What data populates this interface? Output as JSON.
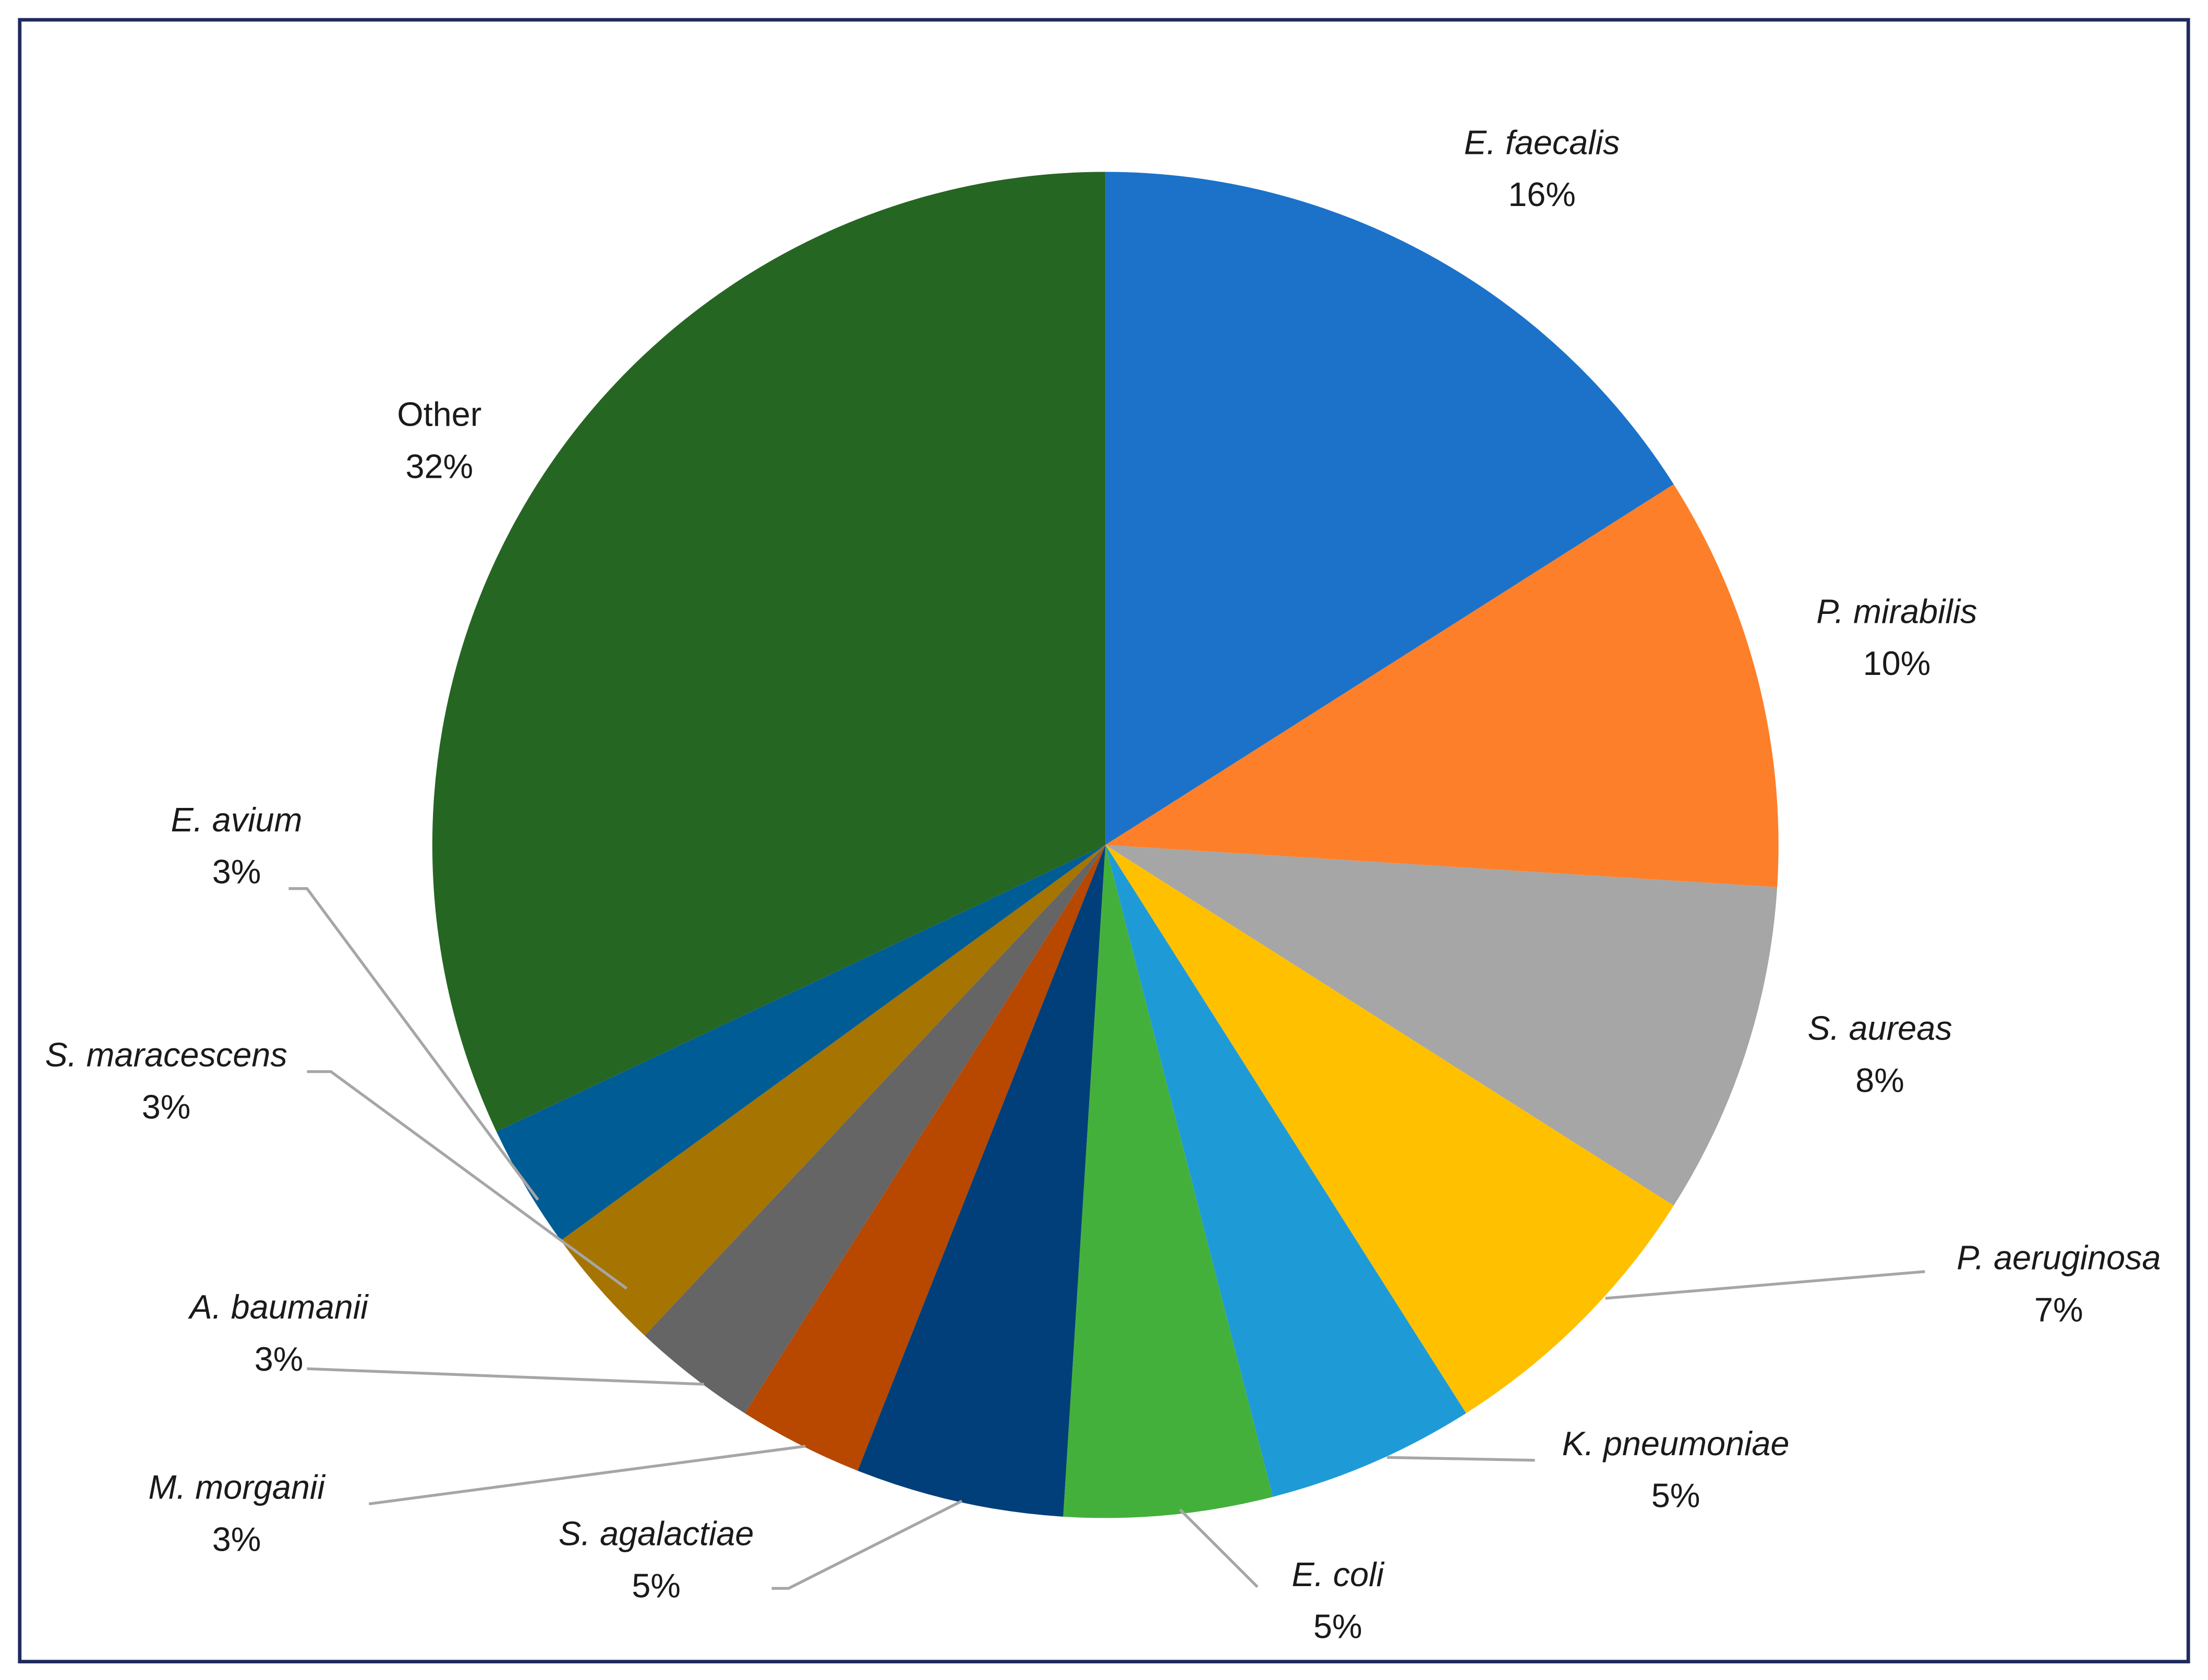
{
  "chart_data": {
    "type": "pie",
    "categories": [
      "E. faecalis",
      "P. mirabilis",
      "S. aureas",
      "P. aeruginosa",
      "K. pneumoniae",
      "E. coli",
      "S. agalactiae",
      "M. morganii",
      "A. baumanii",
      "S. maracescens",
      "E. avium",
      "Other"
    ],
    "values": [
      16,
      10,
      8,
      7,
      5,
      5,
      5,
      3,
      3,
      3,
      3,
      32
    ],
    "value_labels": [
      "16%",
      "10%",
      "8%",
      "7%",
      "5%",
      "5%",
      "5%",
      "3%",
      "3%",
      "3%",
      "3%",
      "32%"
    ],
    "colors": [
      "#1c72c9",
      "#fd7f2a",
      "#a6a6a6",
      "#ffc000",
      "#1e9bd7",
      "#44b03c",
      "#003f79",
      "#b84700",
      "#656565",
      "#a67400",
      "#005c94",
      "#266623"
    ]
  }
}
